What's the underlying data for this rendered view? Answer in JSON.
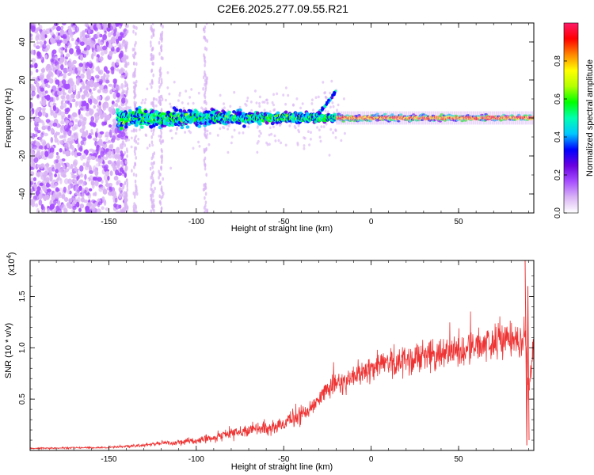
{
  "title": "C2E6.2025.277.09.55.R21",
  "chart_data": [
    {
      "type": "heatmap",
      "name": "spectrogram",
      "xlabel": "Height of straight line (km)",
      "ylabel": "Frequency (Hz)",
      "xlim": [
        -195,
        93
      ],
      "ylim": [
        -50,
        50
      ],
      "xticks": [
        -150,
        -100,
        -50,
        0,
        50
      ],
      "yticks": [
        -40,
        -20,
        0,
        20,
        40
      ],
      "colorbar": {
        "label": "Normalized spectral amplitude",
        "range": [
          0,
          1
        ],
        "ticks": [
          "0.0",
          "0.2",
          "0.4",
          "0.6",
          "0.8"
        ],
        "colors": [
          "#ffffff",
          "#d9b3f5",
          "#a64dff",
          "#6a00e0",
          "#0000ff",
          "#00c8ff",
          "#00ffb0",
          "#00ff00",
          "#b4ff00",
          "#ffff00",
          "#ff8800",
          "#ff0000",
          "#ff1a6a"
        ]
      },
      "description_points": {
        "noise_region_end_km": -145,
        "signal_center_freq_hz": 0,
        "signal_band_half_width_hz": [
          8,
          6,
          4,
          3,
          2
        ],
        "signal_band_x_km": [
          -145,
          -100,
          -50,
          -20,
          90
        ],
        "peak_amplitude_region_km": [
          -10,
          90
        ]
      }
    },
    {
      "type": "line",
      "name": "snr",
      "xlabel": "Height of straight line (km)",
      "ylabel": "SNR (10 * v/v)",
      "ymultiplier": "(x10",
      "ymultiplier_exp": "4",
      "ymultiplier_close": ")",
      "xlim": [
        -195,
        93
      ],
      "ylim": [
        0,
        1.85
      ],
      "xticks": [
        -150,
        -100,
        -50,
        0,
        50
      ],
      "yticks": [
        "0.5",
        "1.0",
        "1.5"
      ],
      "ytick_values": [
        0.5,
        1.0,
        1.5
      ],
      "color": "#ee3333",
      "x": [
        -195,
        -150,
        -130,
        -120,
        -110,
        -100,
        -90,
        -80,
        -70,
        -60,
        -50,
        -45,
        -40,
        -35,
        -30,
        -25,
        -20,
        -15,
        -10,
        -5,
        0,
        10,
        20,
        30,
        40,
        50,
        60,
        70,
        80,
        85,
        88,
        90,
        93
      ],
      "y": [
        0.02,
        0.03,
        0.05,
        0.07,
        0.08,
        0.1,
        0.13,
        0.17,
        0.2,
        0.22,
        0.25,
        0.3,
        0.35,
        0.4,
        0.5,
        0.6,
        0.65,
        0.68,
        0.7,
        0.75,
        0.8,
        0.85,
        0.88,
        0.92,
        0.95,
        0.98,
        1.0,
        1.05,
        1.1,
        1.0,
        1.2,
        0.5,
        1.1
      ]
    }
  ],
  "seed": 17
}
